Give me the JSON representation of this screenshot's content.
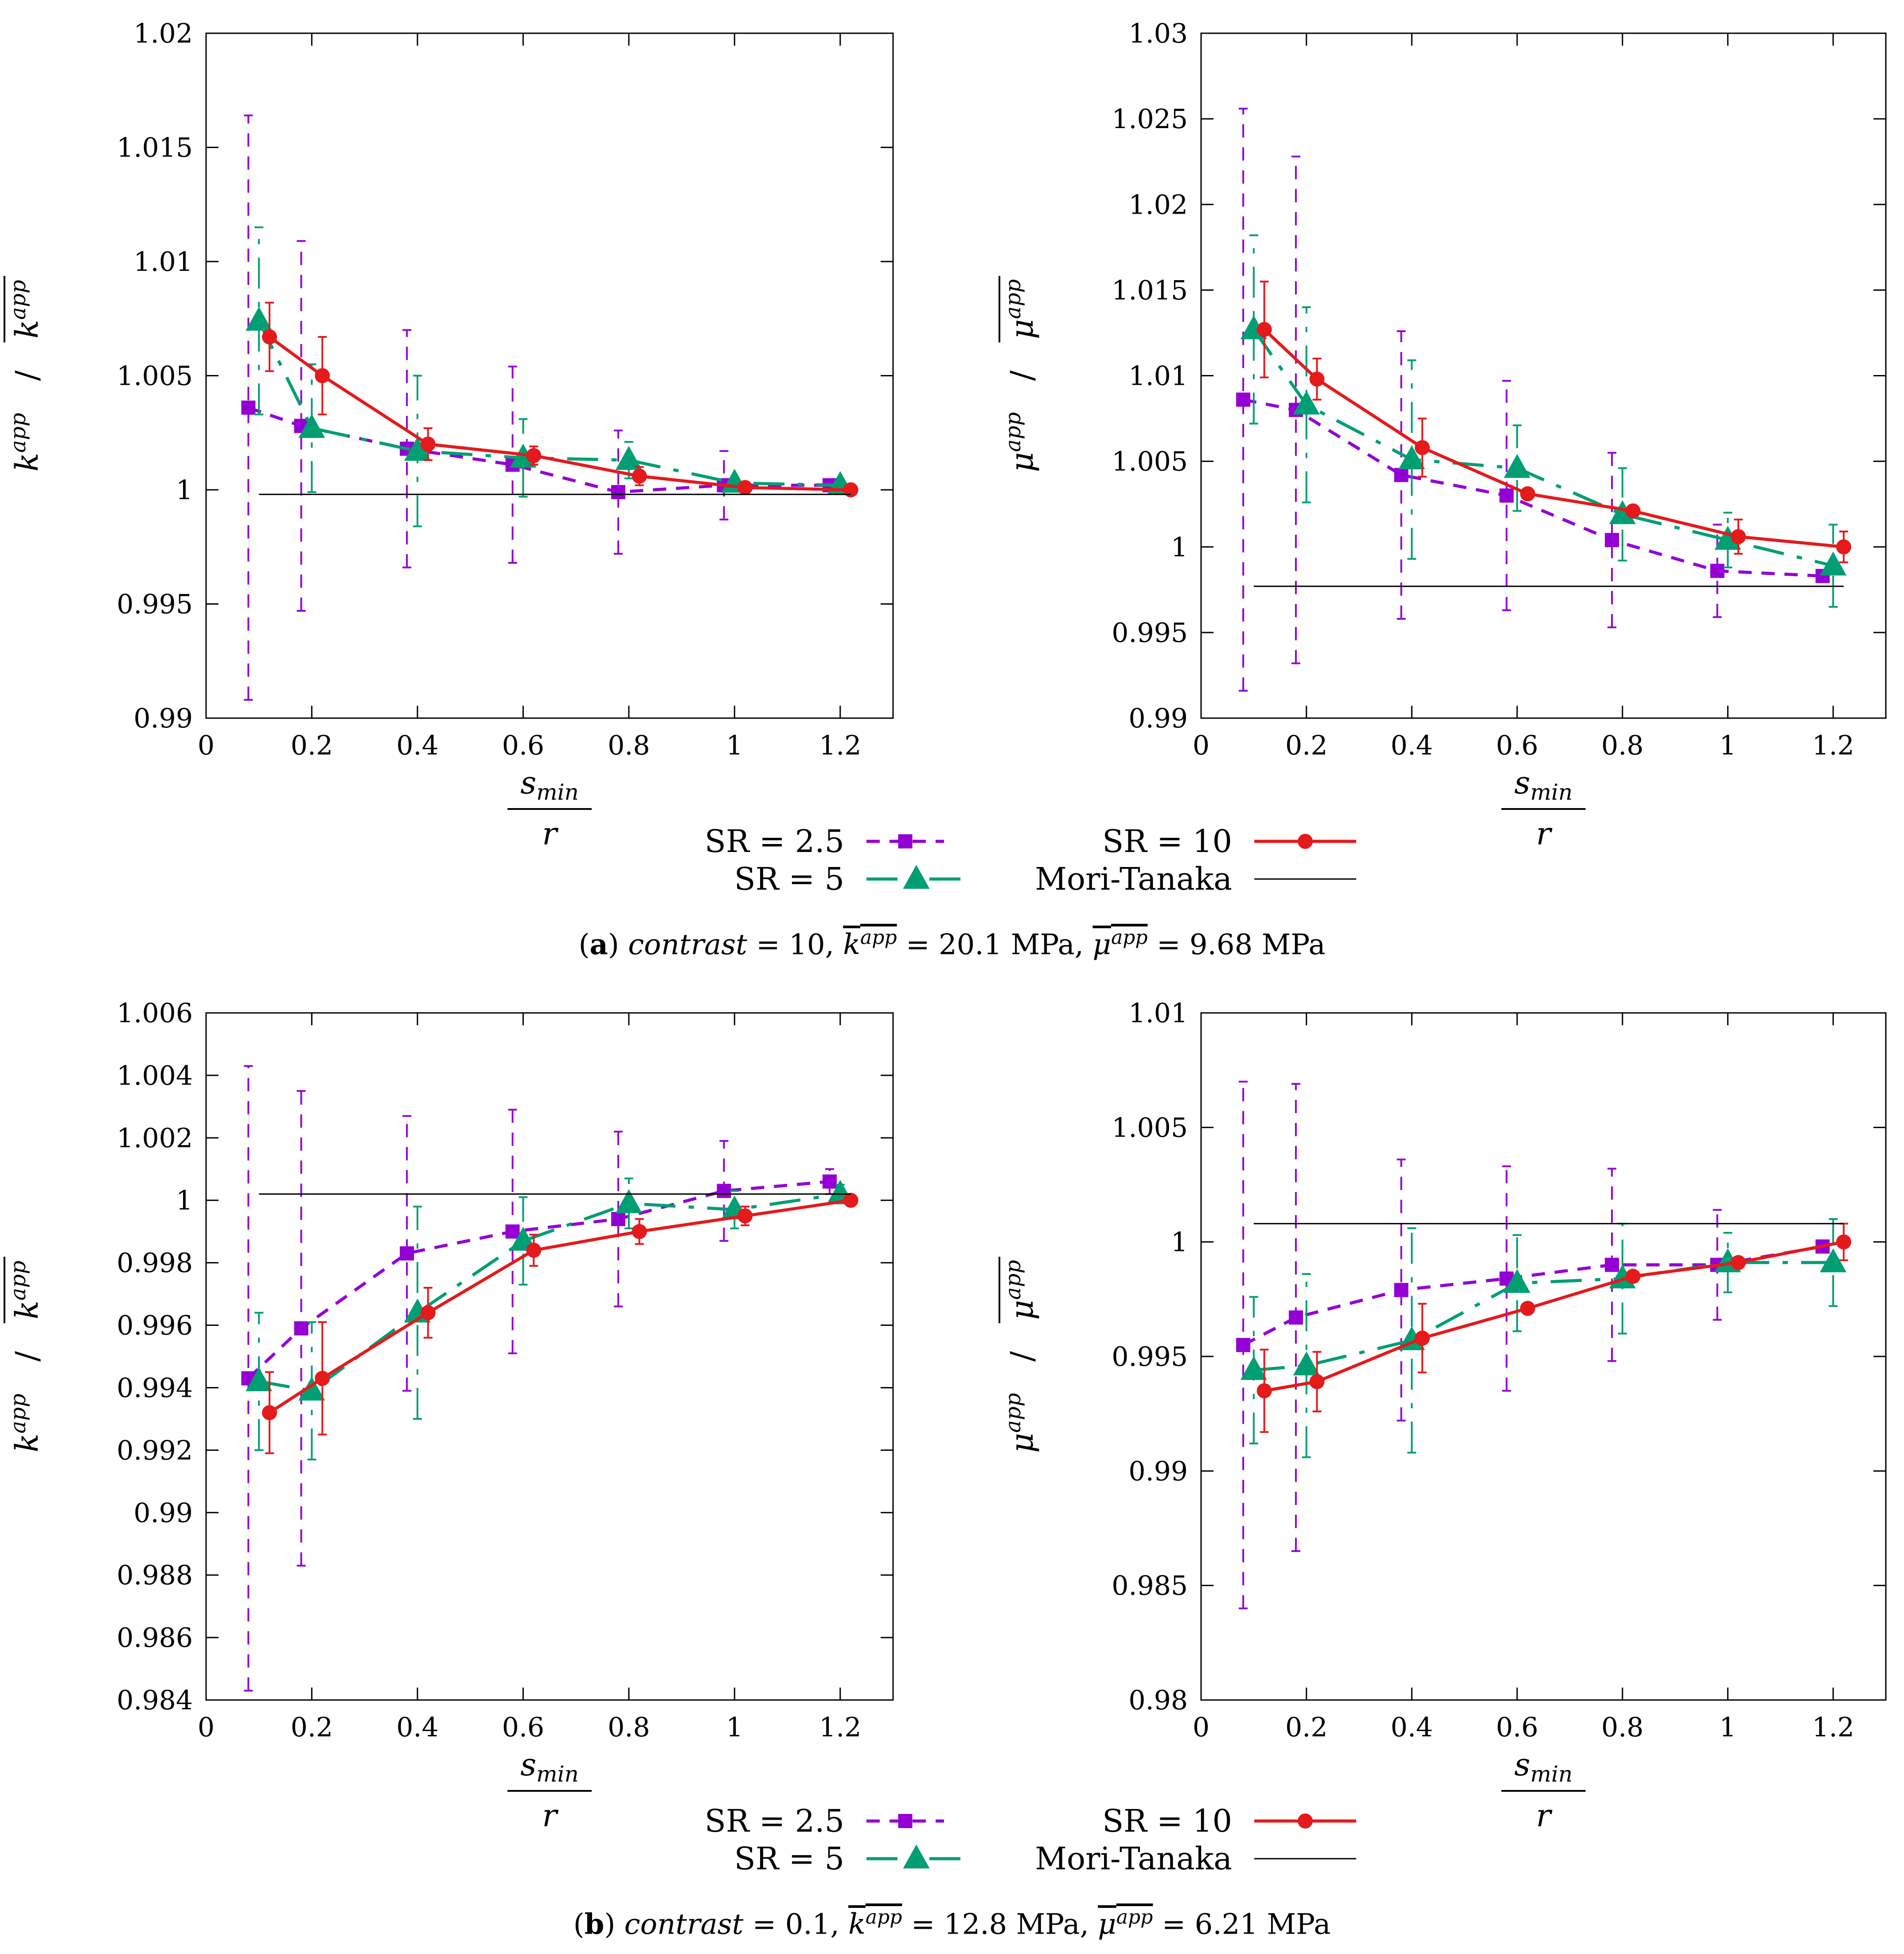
{
  "chart_data": [
    {
      "type": "line",
      "panel": "a",
      "position": "left",
      "ylabel_main": "k",
      "ylabel_sup": "app",
      "xlabel_num": "s",
      "xlabel_num_sub": "min",
      "xlabel_den": "r",
      "xlim": [
        0,
        1.3
      ],
      "ylim": [
        0.99,
        1.02
      ],
      "xticks": [
        0,
        0.2,
        0.4,
        0.6,
        0.8,
        1,
        1.2
      ],
      "xtick_labels": [
        "0",
        "0.2",
        "0.4",
        "0.6",
        "0.8",
        "1",
        "1.2"
      ],
      "yticks": [
        0.99,
        0.995,
        1,
        1.005,
        1.01,
        1.015,
        1.02
      ],
      "ytick_labels": [
        "0.99",
        "0.995",
        "1",
        "1.005",
        "1.01",
        "1.015",
        "1.02"
      ],
      "series": [
        {
          "name": "SR = 2.5",
          "x": [
            0.08,
            0.18,
            0.38,
            0.58,
            0.78,
            0.98,
            1.18
          ],
          "y": [
            1.0036,
            1.0028,
            1.0018,
            1.0011,
            0.9999,
            1.0002,
            1.0002
          ],
          "err": [
            0.0128,
            0.0081,
            0.0052,
            0.0043,
            0.0027,
            0.0015,
            0.0
          ]
        },
        {
          "name": "SR = 5",
          "x": [
            0.1,
            0.2,
            0.4,
            0.6,
            0.8,
            1.0,
            1.2
          ],
          "y": [
            1.0074,
            1.0027,
            1.0017,
            1.0014,
            1.0013,
            1.0003,
            1.0002
          ],
          "err": [
            0.0041,
            0.0028,
            0.0033,
            0.0017,
            0.0008,
            0.0,
            0.0
          ]
        },
        {
          "name": "SR = 10",
          "x": [
            0.12,
            0.22,
            0.42,
            0.62,
            0.82,
            1.02,
            1.22
          ],
          "y": [
            1.0067,
            1.005,
            1.002,
            1.0015,
            1.0006,
            1.0001,
            1.0
          ],
          "err": [
            0.0015,
            0.0017,
            0.0007,
            0.0004,
            0.0004,
            0.0002,
            0.0
          ]
        },
        {
          "name": "Mori-Tanaka",
          "x": [
            0.1,
            1.22
          ],
          "y": [
            0.9998,
            0.9998
          ]
        }
      ]
    },
    {
      "type": "line",
      "panel": "a",
      "position": "right",
      "ylabel_main": "μ",
      "ylabel_sup": "app",
      "xlabel_num": "s",
      "xlabel_num_sub": "min",
      "xlabel_den": "r",
      "xlim": [
        0,
        1.3
      ],
      "ylim": [
        0.99,
        1.03
      ],
      "xticks": [
        0,
        0.2,
        0.4,
        0.6,
        0.8,
        1,
        1.2
      ],
      "xtick_labels": [
        "0",
        "0.2",
        "0.4",
        "0.6",
        "0.8",
        "1",
        "1.2"
      ],
      "yticks": [
        0.99,
        0.995,
        1,
        1.005,
        1.01,
        1.015,
        1.02,
        1.025,
        1.03
      ],
      "ytick_labels": [
        "0.99",
        "0.995",
        "1",
        "1.005",
        "1.01",
        "1.015",
        "1.02",
        "1.025",
        "1.03"
      ],
      "series": [
        {
          "name": "SR = 2.5",
          "x": [
            0.08,
            0.18,
            0.38,
            0.58,
            0.78,
            0.98,
            1.18
          ],
          "y": [
            1.0086,
            1.008,
            1.0042,
            1.003,
            1.0004,
            0.9986,
            0.9983
          ],
          "err": [
            0.017,
            0.0148,
            0.0084,
            0.0067,
            0.0051,
            0.0027,
            0.0
          ]
        },
        {
          "name": "SR = 5",
          "x": [
            0.1,
            0.2,
            0.4,
            0.6,
            0.8,
            1.0,
            1.2
          ],
          "y": [
            1.0127,
            1.0083,
            1.0051,
            1.0046,
            1.0019,
            1.0004,
            0.9989
          ],
          "err": [
            0.0055,
            0.0057,
            0.0058,
            0.0025,
            0.0027,
            0.0016,
            0.0024
          ]
        },
        {
          "name": "SR = 10",
          "x": [
            0.12,
            0.22,
            0.42,
            0.62,
            0.82,
            1.02,
            1.22
          ],
          "y": [
            1.0127,
            1.0098,
            1.0058,
            1.0031,
            1.0021,
            1.0006,
            1.0
          ],
          "err": [
            0.0028,
            0.0012,
            0.0017,
            0.0,
            0.0,
            0.001,
            0.0009
          ]
        },
        {
          "name": "Mori-Tanaka",
          "x": [
            0.1,
            1.22
          ],
          "y": [
            0.9977,
            0.9977
          ]
        }
      ]
    },
    {
      "type": "line",
      "panel": "b",
      "position": "left",
      "ylabel_main": "k",
      "ylabel_sup": "app",
      "xlabel_num": "s",
      "xlabel_num_sub": "min",
      "xlabel_den": "r",
      "xlim": [
        0,
        1.3
      ],
      "ylim": [
        0.984,
        1.006
      ],
      "xticks": [
        0,
        0.2,
        0.4,
        0.6,
        0.8,
        1,
        1.2
      ],
      "xtick_labels": [
        "0",
        "0.2",
        "0.4",
        "0.6",
        "0.8",
        "1",
        "1.2"
      ],
      "yticks": [
        0.984,
        0.986,
        0.988,
        0.99,
        0.992,
        0.994,
        0.996,
        0.998,
        1,
        1.002,
        1.004,
        1.006
      ],
      "ytick_labels": [
        "0.984",
        "0.986",
        "0.988",
        "0.99",
        "0.992",
        "0.994",
        "0.996",
        "0.998",
        "1",
        "1.002",
        "1.004",
        "1.006"
      ],
      "series": [
        {
          "name": "SR = 2.5",
          "x": [
            0.08,
            0.18,
            0.38,
            0.58,
            0.78,
            0.98,
            1.18
          ],
          "y": [
            0.9943,
            0.9959,
            0.9983,
            0.999,
            0.9994,
            1.0003,
            1.0006
          ],
          "err": [
            0.01,
            0.0076,
            0.0044,
            0.0039,
            0.0028,
            0.0016,
            0.0004
          ]
        },
        {
          "name": "SR = 5",
          "x": [
            0.1,
            0.2,
            0.4,
            0.6,
            0.8,
            1.0,
            1.2
          ],
          "y": [
            0.9942,
            0.9939,
            0.9964,
            0.9987,
            0.9999,
            0.9997,
            1.0002
          ],
          "err": [
            0.0022,
            0.0022,
            0.0034,
            0.0014,
            0.0008,
            0.0006,
            0.0003
          ]
        },
        {
          "name": "SR = 10",
          "x": [
            0.12,
            0.22,
            0.42,
            0.62,
            0.82,
            1.02,
            1.22
          ],
          "y": [
            0.9932,
            0.9943,
            0.9964,
            0.9984,
            0.999,
            0.9995,
            1.0
          ],
          "err": [
            0.0013,
            0.0018,
            0.0008,
            0.0005,
            0.0004,
            0.0003,
            0.0
          ]
        },
        {
          "name": "Mori-Tanaka",
          "x": [
            0.1,
            1.22
          ],
          "y": [
            1.0002,
            1.0002
          ]
        }
      ]
    },
    {
      "type": "line",
      "panel": "b",
      "position": "right",
      "ylabel_main": "μ",
      "ylabel_sup": "app",
      "xlabel_num": "s",
      "xlabel_num_sub": "min",
      "xlabel_den": "r",
      "xlim": [
        0,
        1.3
      ],
      "ylim": [
        0.98,
        1.01
      ],
      "xticks": [
        0,
        0.2,
        0.4,
        0.6,
        0.8,
        1,
        1.2
      ],
      "xtick_labels": [
        "0",
        "0.2",
        "0.4",
        "0.6",
        "0.8",
        "1",
        "1.2"
      ],
      "yticks": [
        0.98,
        0.985,
        0.99,
        0.995,
        1,
        1.005,
        1.01
      ],
      "ytick_labels": [
        "0.98",
        "0.985",
        "0.99",
        "0.995",
        "1",
        "1.005",
        "1.01"
      ],
      "series": [
        {
          "name": "SR = 2.5",
          "x": [
            0.08,
            0.18,
            0.38,
            0.58,
            0.78,
            0.98,
            1.18
          ],
          "y": [
            0.9955,
            0.9967,
            0.9979,
            0.9984,
            0.999,
            0.999,
            0.9998
          ],
          "err": [
            0.0115,
            0.0102,
            0.0057,
            0.0049,
            0.0042,
            0.0024,
            0.0
          ]
        },
        {
          "name": "SR = 5",
          "x": [
            0.1,
            0.2,
            0.4,
            0.6,
            0.8,
            1.0,
            1.2
          ],
          "y": [
            0.9944,
            0.9946,
            0.9957,
            0.9982,
            0.9984,
            0.9991,
            0.9991
          ],
          "err": [
            0.0032,
            0.004,
            0.0049,
            0.0021,
            0.0024,
            0.0013,
            0.0019
          ]
        },
        {
          "name": "SR = 10",
          "x": [
            0.12,
            0.22,
            0.42,
            0.62,
            0.82,
            1.02,
            1.22
          ],
          "y": [
            0.9935,
            0.9939,
            0.9958,
            0.9971,
            0.9985,
            0.9991,
            1.0
          ],
          "err": [
            0.0018,
            0.0013,
            0.0015,
            0.0,
            0.0,
            0.0,
            0.0008
          ]
        },
        {
          "name": "Mori-Tanaka",
          "x": [
            0.1,
            1.22
          ],
          "y": [
            1.0008,
            1.0008
          ]
        }
      ]
    }
  ],
  "legend": {
    "entries": [
      "SR = 2.5",
      "SR = 10",
      "SR = 5",
      "Mori-Tanaka"
    ]
  },
  "colors": {
    "sr25": "#9400D3",
    "sr5": "#009E73",
    "sr10": "#E41A1C",
    "mori_tanaka": "#000000"
  },
  "captions": {
    "a": {
      "label": "a",
      "italic_word": "contrast",
      "eq_value": " = 10, ",
      "k_sym": "k",
      "k_sup": "app",
      "k_value": " = 20.1 MPa, ",
      "mu_sym": "μ",
      "mu_sup": "app",
      "mu_value": " = 9.68 MPa"
    },
    "b": {
      "label": "b",
      "italic_word": "contrast",
      "eq_value": " = 0.1, ",
      "k_sym": "k",
      "k_sup": "app",
      "k_value": " = 12.8 MPa, ",
      "mu_sym": "μ",
      "mu_sup": "app",
      "mu_value": " = 6.21 MPa"
    }
  }
}
